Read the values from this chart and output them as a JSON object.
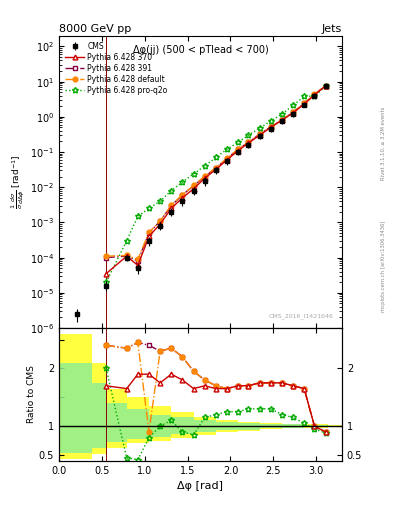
{
  "title": "8000 GeV pp",
  "title_right": "Jets",
  "subtitle": "Δφ(jj) (500 < pTlead < 700)",
  "watermark": "CMS_2016_I1421646",
  "ylabel_main": "$\\frac{1}{\\sigma}\\frac{d\\sigma}{d\\Delta\\phi}$ [rad$^{-1}$]",
  "ylabel_ratio": "Ratio to CMS",
  "xlabel": "Δφ [rad]",
  "rivet_label": "Rivet 3.1.10, ≥ 3.2M events",
  "mcplots_label": "mcplots.cern.ch [arXiv:1306.3436]",
  "cms_x": [
    0.21,
    0.55,
    0.79,
    0.92,
    1.05,
    1.18,
    1.31,
    1.44,
    1.57,
    1.7,
    1.83,
    1.96,
    2.09,
    2.21,
    2.34,
    2.47,
    2.6,
    2.73,
    2.86,
    2.98,
    3.11
  ],
  "cms_y": [
    2.5e-06,
    1.6e-05,
    0.0001,
    5e-05,
    0.0003,
    0.0008,
    0.002,
    0.004,
    0.008,
    0.015,
    0.03,
    0.055,
    0.1,
    0.16,
    0.28,
    0.45,
    0.75,
    1.2,
    2.2,
    4.0,
    7.5
  ],
  "cms_yerr": [
    1e-06,
    5e-06,
    2e-05,
    1.5e-05,
    8e-05,
    0.0002,
    0.0005,
    0.001,
    0.002,
    0.004,
    0.007,
    0.012,
    0.02,
    0.03,
    0.05,
    0.08,
    0.12,
    0.2,
    0.35,
    0.6,
    1.0
  ],
  "p370_x": [
    0.55,
    0.79,
    0.92,
    1.05,
    1.18,
    1.31,
    1.44,
    1.57,
    1.7,
    1.83,
    1.96,
    2.09,
    2.21,
    2.34,
    2.47,
    2.6,
    2.73,
    2.86,
    2.98,
    3.11
  ],
  "p370_y": [
    3.5e-05,
    0.00011,
    6e-05,
    0.0004,
    0.0009,
    0.0025,
    0.005,
    0.009,
    0.018,
    0.032,
    0.06,
    0.11,
    0.18,
    0.3,
    0.5,
    0.8,
    1.3,
    2.3,
    4.2,
    7.6
  ],
  "p391_x": [
    0.55,
    0.79,
    0.92,
    1.05,
    1.18,
    1.31,
    1.44,
    1.57,
    1.7,
    1.83,
    1.96,
    2.09,
    2.21,
    2.34,
    2.47,
    2.6,
    2.73,
    2.86,
    2.98,
    3.11
  ],
  "p391_y": [
    0.0001,
    0.00011,
    8e-05,
    0.0005,
    0.0011,
    0.003,
    0.006,
    0.011,
    0.02,
    0.035,
    0.065,
    0.12,
    0.19,
    0.32,
    0.52,
    0.82,
    1.35,
    2.4,
    4.3,
    7.7
  ],
  "pdef_x": [
    0.55,
    0.79,
    0.92,
    1.05,
    1.18,
    1.31,
    1.44,
    1.57,
    1.7,
    1.83,
    1.96,
    2.09,
    2.21,
    2.34,
    2.47,
    2.6,
    2.73,
    2.86,
    2.98,
    3.11
  ],
  "pdef_y": [
    0.00011,
    0.000115,
    9e-05,
    0.00052,
    0.0011,
    0.0031,
    0.0061,
    0.0112,
    0.0205,
    0.036,
    0.066,
    0.122,
    0.192,
    0.322,
    0.522,
    0.822,
    1.36,
    2.41,
    4.31,
    7.71
  ],
  "pq2o_x": [
    0.55,
    0.79,
    0.92,
    1.05,
    1.18,
    1.31,
    1.44,
    1.57,
    1.7,
    1.83,
    1.96,
    2.09,
    2.21,
    2.34,
    2.47,
    2.6,
    2.73,
    2.86,
    2.98,
    3.11
  ],
  "pq2o_y": [
    2e-05,
    0.0003,
    0.0015,
    0.0025,
    0.004,
    0.008,
    0.014,
    0.024,
    0.04,
    0.07,
    0.12,
    0.19,
    0.3,
    0.48,
    0.76,
    1.2,
    2.1,
    3.8,
    3.9,
    7.3
  ],
  "ratio_x": [
    0.55,
    0.79,
    0.92,
    1.05,
    1.18,
    1.31,
    1.44,
    1.57,
    1.7,
    1.83,
    1.96,
    2.09,
    2.21,
    2.34,
    2.47,
    2.6,
    2.73,
    2.86,
    2.98,
    3.11
  ],
  "ratio_p370": [
    1.7,
    1.65,
    1.9,
    1.9,
    1.75,
    1.9,
    1.8,
    1.65,
    1.7,
    1.65,
    1.65,
    1.7,
    1.7,
    1.75,
    1.75,
    1.75,
    1.7,
    1.65,
    1.0,
    0.9
  ],
  "ratio_p391": [
    2.4,
    2.35,
    2.45,
    2.4,
    2.3,
    2.35,
    2.2,
    1.95,
    1.8,
    1.7,
    1.65,
    1.7,
    1.7,
    1.75,
    1.75,
    1.75,
    1.7,
    1.65,
    1.0,
    0.9
  ],
  "ratio_pdef": [
    2.4,
    2.35,
    2.45,
    0.9,
    2.3,
    2.35,
    2.2,
    1.95,
    1.8,
    1.7,
    1.65,
    1.7,
    1.7,
    1.75,
    1.75,
    1.75,
    1.7,
    1.65,
    1.0,
    0.9
  ],
  "ratio_pq2o": [
    2.0,
    0.45,
    0.42,
    0.8,
    1.0,
    1.1,
    0.9,
    0.85,
    1.15,
    1.2,
    1.25,
    1.25,
    1.3,
    1.3,
    1.3,
    1.2,
    1.15,
    1.05,
    0.95,
    0.88
  ],
  "band_x_edges": [
    0.0,
    0.38,
    0.55,
    0.79,
    1.05,
    1.31,
    1.57,
    1.83,
    2.09,
    2.34,
    2.6,
    2.86,
    3.14,
    3.3
  ],
  "yellow_upper": [
    2.6,
    2.1,
    1.65,
    1.5,
    1.35,
    1.25,
    1.15,
    1.1,
    1.08,
    1.05,
    1.04,
    1.03,
    1.02
  ],
  "yellow_lower": [
    0.43,
    0.52,
    0.63,
    0.7,
    0.75,
    0.8,
    0.85,
    0.9,
    0.92,
    0.95,
    0.96,
    0.97,
    0.98
  ],
  "green_upper": [
    2.1,
    1.75,
    1.4,
    1.3,
    1.2,
    1.15,
    1.1,
    1.07,
    1.06,
    1.04,
    1.03,
    1.02,
    1.01
  ],
  "green_lower": [
    0.53,
    0.62,
    0.72,
    0.78,
    0.82,
    0.86,
    0.9,
    0.93,
    0.94,
    0.96,
    0.97,
    0.98,
    0.99
  ],
  "color_cms": "#000000",
  "color_p370": "#cc0000",
  "color_p391": "#880044",
  "color_pdef": "#ff8800",
  "color_pq2o": "#00aa00",
  "ylim_main": [
    1e-06,
    200
  ],
  "ylim_ratio": [
    0.4,
    2.7
  ],
  "xlim": [
    0.0,
    3.3
  ]
}
